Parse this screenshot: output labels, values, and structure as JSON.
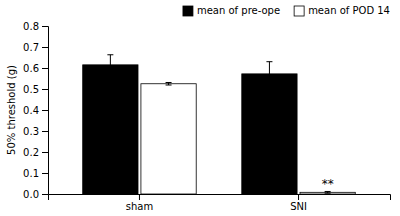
{
  "chart_data": {
    "type": "bar",
    "categories": [
      "sham",
      "SNI"
    ],
    "series": [
      {
        "name": "mean of pre-ope",
        "color": "#000000",
        "values": [
          0.615,
          0.572
        ],
        "errors": [
          0.048,
          0.058
        ]
      },
      {
        "name": "mean of POD 14",
        "color": "#ffffff",
        "values": [
          0.525,
          0.008
        ],
        "errors": [
          0.006,
          0.004
        ]
      }
    ],
    "ylabel": "50% threshold (g)",
    "ylim": [
      0,
      0.8
    ],
    "yticks": [
      {
        "value": 0.0,
        "label": "0.0"
      },
      0.1,
      0.2,
      0.3,
      0.4,
      0.5,
      0.6,
      0.7,
      0.8
    ],
    "legend": "upper right",
    "grid": false,
    "annotations": [
      {
        "text": "**",
        "category": "SNI",
        "series": "mean of POD 14"
      }
    ]
  }
}
